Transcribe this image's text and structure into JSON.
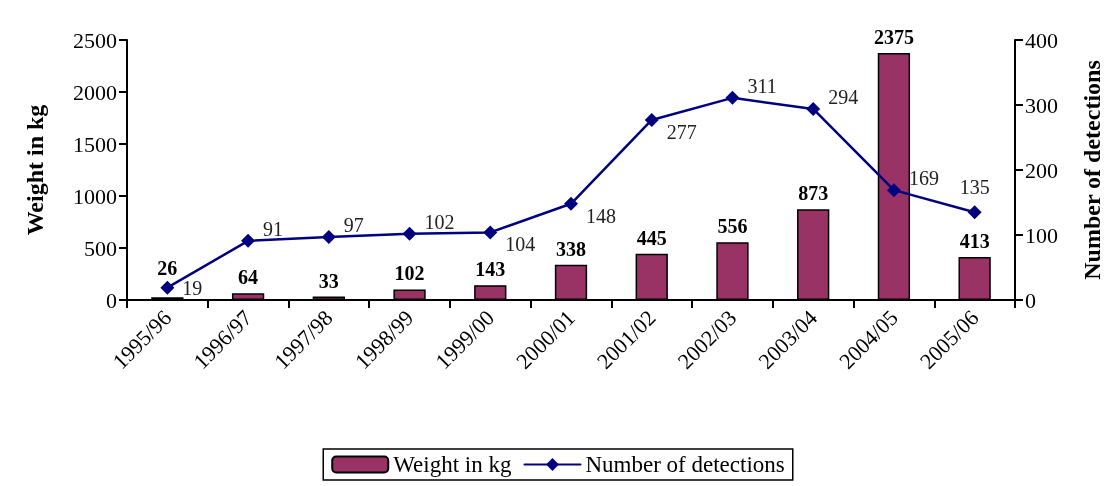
{
  "chart_data": {
    "type": "bar",
    "categories": [
      "1995/96",
      "1996/97",
      "1997/98",
      "1998/99",
      "1999/00",
      "2000/01",
      "2001/02",
      "2002/03",
      "2003/04",
      "2004/05",
      "2005/06"
    ],
    "series": [
      {
        "name": "Weight in kg",
        "color": "#993366",
        "values": [
          26,
          64,
          33,
          102,
          143,
          338,
          445,
          556,
          873,
          2375,
          413
        ]
      },
      {
        "name": "Number of detections",
        "type": "line",
        "axis": "y2",
        "color": "#000080",
        "values": [
          19,
          91,
          97,
          102,
          104,
          148,
          277,
          311,
          294,
          169,
          135
        ]
      }
    ],
    "ylabel": "Weight in kg",
    "y2label": "Number of detections",
    "ylim": [
      0,
      2500
    ],
    "yticks": [
      0,
      500,
      1000,
      1500,
      2000,
      2500
    ],
    "y2lim": [
      0,
      400
    ],
    "y2ticks": [
      0,
      100,
      200,
      300,
      400
    ],
    "data_labels": true,
    "legend": "bottom",
    "marker": "diamond",
    "line_style": "solid"
  }
}
